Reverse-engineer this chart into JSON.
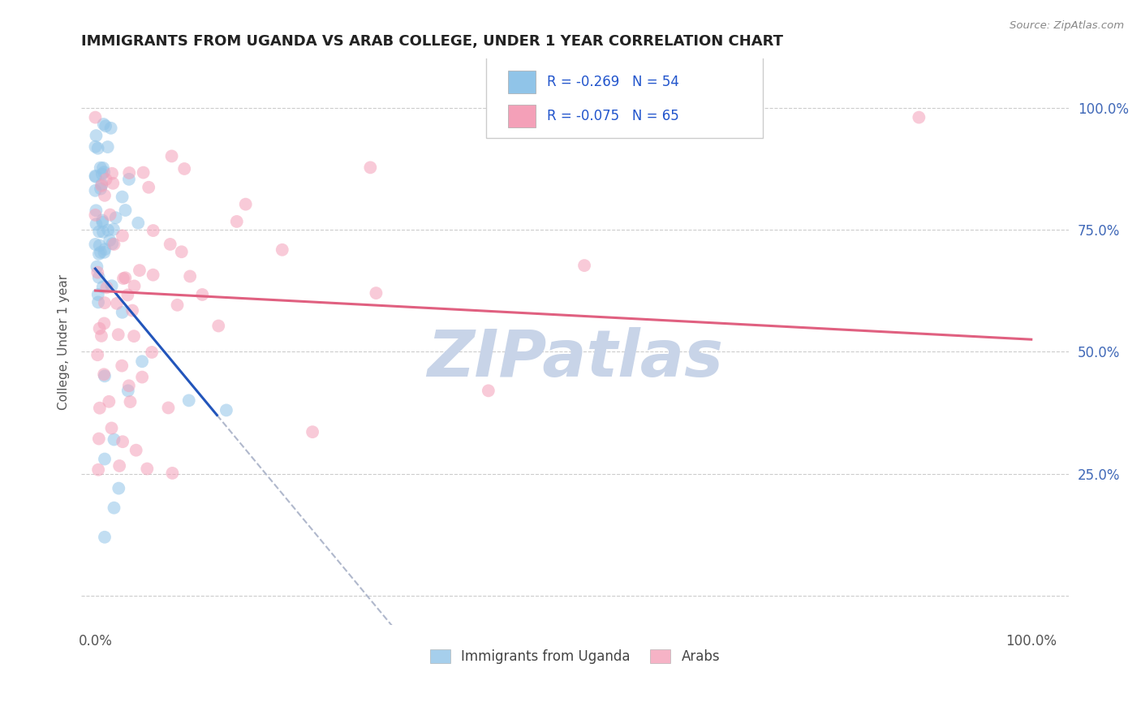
{
  "title": "IMMIGRANTS FROM UGANDA VS ARAB COLLEGE, UNDER 1 YEAR CORRELATION CHART",
  "source": "Source: ZipAtlas.com",
  "ylabel": "College, Under 1 year",
  "legend_r1": "R = -0.269",
  "legend_n1": "N = 54",
  "legend_r2": "R = -0.075",
  "legend_n2": "N = 65",
  "legend1_label": "Immigrants from Uganda",
  "legend2_label": "Arabs",
  "blue_color": "#90c4e8",
  "pink_color": "#f4a0b8",
  "blue_line_color": "#2255bb",
  "pink_line_color": "#e06080",
  "dash_color": "#b0b8cc",
  "background_color": "#ffffff",
  "grid_color": "#cccccc",
  "watermark": "ZIPatlas",
  "watermark_color": "#c8d4e8",
  "tick_color_right": "#4169b8",
  "tick_color_bottom": "#555555",
  "title_color": "#222222",
  "source_color": "#888888",
  "ylabel_color": "#555555"
}
